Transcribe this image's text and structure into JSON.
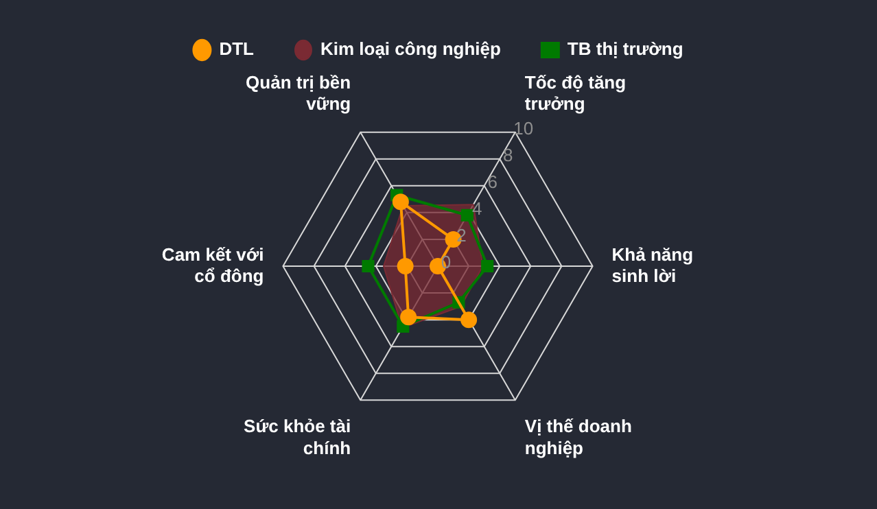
{
  "chart_data": {
    "type": "radar",
    "categories": [
      "Tốc độ tăng trưởng",
      "Khả năng sinh lời",
      "Vị thế doanh nghiệp",
      "Sức khỏe tài chính",
      "Cam kết với cổ đông",
      "Quản trị bền vững"
    ],
    "series": [
      {
        "name": "DTL",
        "color": "#ff9900",
        "marker": "circle",
        "values": [
          2,
          0,
          4,
          3.8,
          2.1,
          4.8
        ]
      },
      {
        "name": "Kim loại công nghiệp",
        "color": "#7a2a33",
        "type": "area",
        "marker": "none",
        "values": [
          4.6,
          2.9,
          3,
          4.6,
          3.5,
          4.5
        ]
      },
      {
        "name": "TB thị trường",
        "color": "#007a00",
        "marker": "square",
        "values": [
          3.8,
          3.2,
          2.7,
          4.5,
          4.5,
          5.3
        ]
      }
    ],
    "ylim": [
      0,
      10
    ],
    "yticks": [
      0,
      2,
      4,
      6,
      8,
      10
    ],
    "grid": true,
    "legend": "top"
  }
}
